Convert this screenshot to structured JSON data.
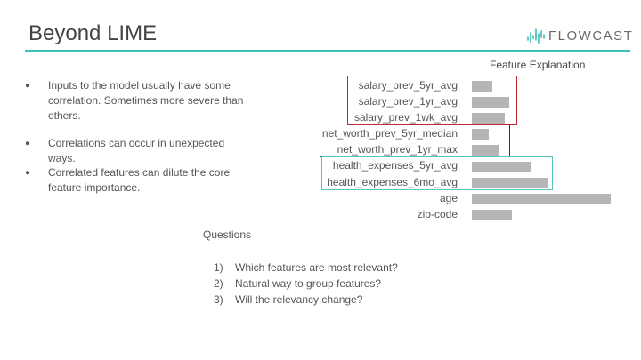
{
  "slide": {
    "title": "Beyond LIME"
  },
  "logo": {
    "text": "FLOWCAST",
    "accent": "#3bbfb6"
  },
  "bullets": [
    {
      "marker": "●",
      "text": "Inputs to the model usually have some correlation. Sometimes more severe than others."
    },
    {
      "marker": "●",
      "text": "Correlations can occur in unexpected ways."
    },
    {
      "marker": "●",
      "text": "Correlated features can dilute the core feature importance."
    }
  ],
  "chart_data": {
    "type": "bar",
    "orientation": "horizontal",
    "title": "Feature Explanation",
    "categories": [
      "salary_prev_5yr_avg",
      "salary_prev_1yr_avg",
      "salary_prev_1wk_avg",
      "net_worth_prev_5yr_median",
      "net_worth_prev_1yr_max",
      "health_expenses_5yr_avg",
      "health_expenses_6mo_avg",
      "age",
      "zip-code"
    ],
    "values": [
      0.15,
      0.27,
      0.24,
      0.12,
      0.2,
      0.43,
      0.55,
      1.0,
      0.29
    ],
    "bar_color": "#b5b5b5",
    "groups": [
      {
        "members": [
          "salary_prev_5yr_avg",
          "salary_prev_1yr_avg",
          "salary_prev_1wk_avg"
        ],
        "color": "#c0282e"
      },
      {
        "members": [
          "net_worth_prev_5yr_median",
          "net_worth_prev_1yr_max"
        ],
        "color": "#2c2a7a"
      },
      {
        "members": [
          "health_expenses_5yr_avg",
          "health_expenses_6mo_avg"
        ],
        "color": "#57c6b8"
      }
    ]
  },
  "questions": {
    "title": "Questions",
    "items": [
      {
        "num": "1)",
        "text": "Which features are most relevant?"
      },
      {
        "num": "2)",
        "text": "Natural way to group features?"
      },
      {
        "num": "3)",
        "text": "Will the relevancy change?"
      }
    ]
  }
}
